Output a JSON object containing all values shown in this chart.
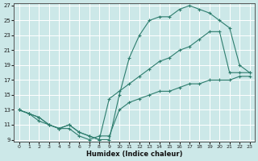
{
  "xlabel": "Humidex (Indice chaleur)",
  "background_color": "#cce8e8",
  "grid_color": "#ffffff",
  "line_color": "#2e7d6e",
  "ylim": [
    9,
    27
  ],
  "xlim": [
    -0.5,
    23.5
  ],
  "yticks": [
    9,
    11,
    13,
    15,
    17,
    19,
    21,
    23,
    25,
    27
  ],
  "xticks": [
    0,
    1,
    2,
    3,
    4,
    5,
    6,
    7,
    8,
    9,
    10,
    11,
    12,
    13,
    14,
    15,
    16,
    17,
    18,
    19,
    20,
    21,
    22,
    23
  ],
  "line1_x": [
    0,
    1,
    2,
    3,
    4,
    5,
    6,
    7,
    8,
    9,
    10,
    11,
    12,
    13,
    14,
    15,
    16,
    17,
    18,
    19,
    20,
    21,
    22,
    23
  ],
  "line1_y": [
    13,
    12.5,
    11.5,
    11,
    10.5,
    10.5,
    9.5,
    9,
    9.5,
    9.5,
    13,
    14,
    14.5,
    15,
    15.5,
    15.5,
    16,
    16.5,
    16.5,
    17,
    17,
    17,
    17.5,
    17.5
  ],
  "line2_x": [
    0,
    1,
    2,
    3,
    4,
    5,
    6,
    7,
    8,
    9,
    10,
    11,
    12,
    13,
    14,
    15,
    16,
    17,
    18,
    19,
    20,
    21,
    22,
    23
  ],
  "line2_y": [
    13,
    12.5,
    12,
    11,
    10.5,
    11,
    10,
    9.5,
    9,
    9,
    15,
    20,
    23,
    25,
    25.5,
    25.5,
    26.5,
    27,
    26.5,
    26,
    25,
    24,
    19,
    18
  ],
  "line3_x": [
    0,
    1,
    2,
    3,
    4,
    5,
    6,
    7,
    8,
    9,
    10,
    11,
    12,
    13,
    14,
    15,
    16,
    17,
    18,
    19,
    20,
    21,
    22,
    23
  ],
  "line3_y": [
    13,
    12.5,
    12,
    11,
    10.5,
    11,
    10,
    9.5,
    9,
    14.5,
    15.5,
    16.5,
    17.5,
    18.5,
    19.5,
    20,
    21,
    21.5,
    22.5,
    23.5,
    23.5,
    18,
    18,
    18
  ]
}
